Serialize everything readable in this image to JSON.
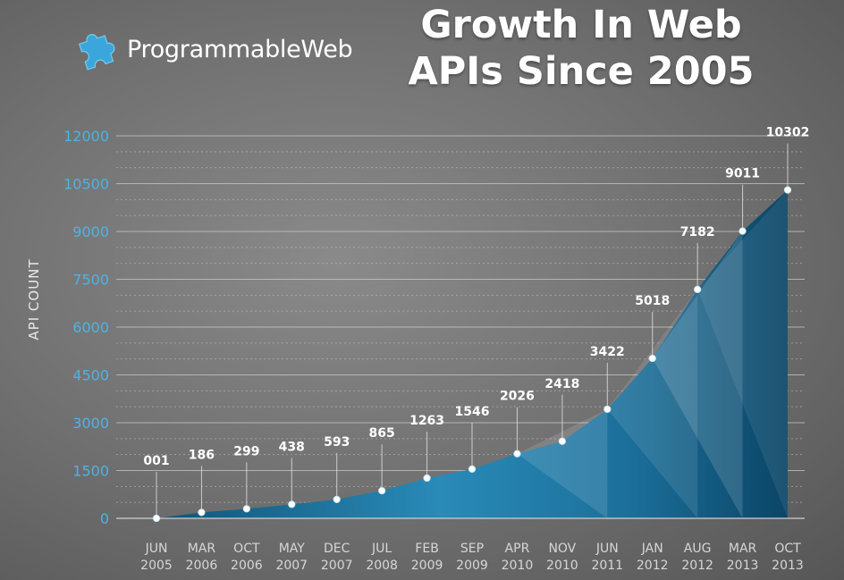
{
  "brand": {
    "name": "ProgrammableWeb",
    "icon": "puzzle-piece-icon",
    "icon_color": "#3aa6dc"
  },
  "chart_data": {
    "type": "area",
    "title": "Growth In Web APIs Since 2005",
    "title_lines": [
      "Growth In Web",
      "APIs Since 2005"
    ],
    "ylabel": "API COUNT",
    "xlabel": "",
    "ylim": [
      0,
      12000
    ],
    "yticks": [
      0,
      1500,
      3000,
      4500,
      6000,
      7500,
      9000,
      10500,
      12000
    ],
    "grid": true,
    "colors": {
      "area": "#1f7aa6",
      "area_dark": "#0c4a6e",
      "tick_label": "#4db3e6",
      "line": "#ffffff"
    },
    "points": [
      {
        "month": "JUN",
        "year": "2005",
        "value": 1,
        "label": "001"
      },
      {
        "month": "MAR",
        "year": "2006",
        "value": 186,
        "label": "186"
      },
      {
        "month": "OCT",
        "year": "2006",
        "value": 299,
        "label": "299"
      },
      {
        "month": "MAY",
        "year": "2007",
        "value": 438,
        "label": "438"
      },
      {
        "month": "DEC",
        "year": "2007",
        "value": 593,
        "label": "593"
      },
      {
        "month": "JUL",
        "year": "2008",
        "value": 865,
        "label": "865"
      },
      {
        "month": "FEB",
        "year": "2009",
        "value": 1263,
        "label": "1263"
      },
      {
        "month": "SEP",
        "year": "2009",
        "value": 1546,
        "label": "1546"
      },
      {
        "month": "APR",
        "year": "2010",
        "value": 2026,
        "label": "2026"
      },
      {
        "month": "NOV",
        "year": "2010",
        "value": 2418,
        "label": "2418"
      },
      {
        "month": "JUN",
        "year": "2011",
        "value": 3422,
        "label": "3422"
      },
      {
        "month": "JAN",
        "year": "2012",
        "value": 5018,
        "label": "5018"
      },
      {
        "month": "AUG",
        "year": "2012",
        "value": 7182,
        "label": "7182"
      },
      {
        "month": "MAR",
        "year": "2013",
        "value": 9011,
        "label": "9011"
      },
      {
        "month": "OCT",
        "year": "2013",
        "value": 10302,
        "label": "10302"
      }
    ]
  }
}
